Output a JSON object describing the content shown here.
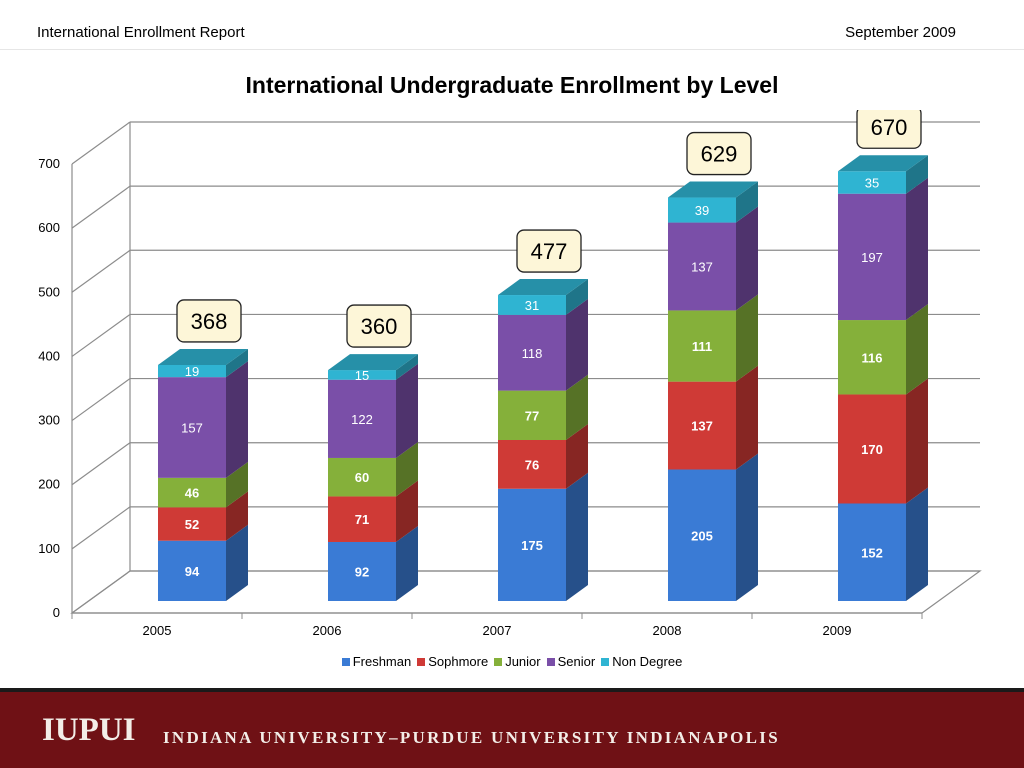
{
  "header": {
    "left_text": "International Enrollment Report",
    "right_text": "September 2009"
  },
  "footer": {
    "logo": "IUPUI",
    "name": "INDIANA UNIVERSITY–PURDUE UNIVERSITY INDIANAPOLIS",
    "background_color": "#6f1115"
  },
  "chart_data": {
    "type": "bar",
    "stacked": true,
    "three_d": true,
    "title": "International Undergraduate Enrollment by Level",
    "xlabel": "",
    "ylabel": "",
    "categories": [
      "2005",
      "2006",
      "2007",
      "2008",
      "2009"
    ],
    "ylim": [
      0,
      700
    ],
    "yticks": [
      0,
      100,
      200,
      300,
      400,
      500,
      600,
      700
    ],
    "grid": true,
    "legend_position": "bottom",
    "series": [
      {
        "name": "Freshman",
        "color": "#3a7bd5",
        "values": [
          94,
          92,
          175,
          205,
          152
        ]
      },
      {
        "name": "Sophmore",
        "color": "#cf3a36",
        "values": [
          52,
          71,
          76,
          137,
          170
        ]
      },
      {
        "name": "Junior",
        "color": "#85b03a",
        "values": [
          46,
          60,
          77,
          111,
          116
        ]
      },
      {
        "name": "Senior",
        "color": "#7a4fa8",
        "values": [
          157,
          122,
          118,
          137,
          197
        ]
      },
      {
        "name": "Non Degree",
        "color": "#2fb4d2",
        "values": [
          19,
          15,
          31,
          39,
          35
        ]
      }
    ],
    "totals": [
      368,
      360,
      477,
      629,
      670
    ]
  }
}
